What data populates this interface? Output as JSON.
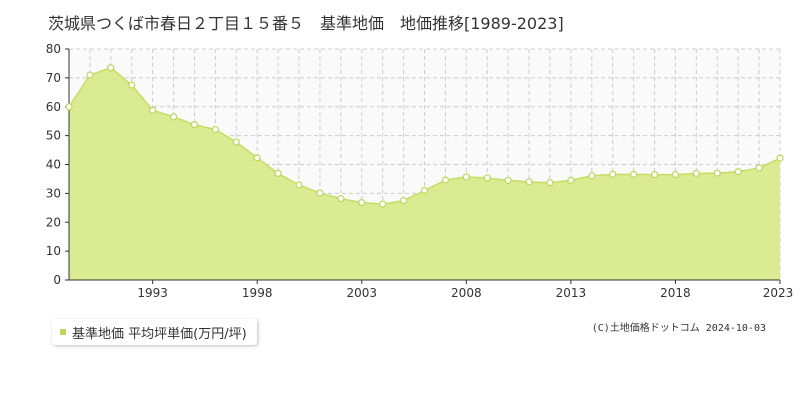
{
  "header": {
    "title": "茨城県つくば市春日２丁目１５番５　基準地価　地価推移[1989-2023]"
  },
  "legend": {
    "label": "基準地価 平均坪単価(万円/坪)"
  },
  "footer": {
    "copyright": "(C)土地価格ドットコム 2024-10-03"
  },
  "colors": {
    "fill": "#dbeb91",
    "line": "#c3df62",
    "marker_stroke": "#b9d85a",
    "marker_fill": "#ffffff",
    "grid": "#cccccc",
    "legend_marker": "#bcd85c",
    "plot_bg": "#fafafa"
  },
  "chart_data": {
    "type": "area",
    "title": "茨城県つくば市春日２丁目１５番５　基準地価　地価推移[1989-2023]",
    "xlabel": "",
    "ylabel": "",
    "xlim": [
      1989,
      2023
    ],
    "ylim": [
      0,
      80
    ],
    "y_ticks": [
      0,
      10,
      20,
      30,
      40,
      50,
      60,
      70,
      80
    ],
    "x_tick_labels": [
      1993,
      1998,
      2003,
      2008,
      2013,
      2018,
      2023
    ],
    "grid": true,
    "legend_position": "bottom-left",
    "series": [
      {
        "name": "基準地価 平均坪単価(万円/坪)",
        "x": [
          1989,
          1990,
          1991,
          1992,
          1993,
          1994,
          1995,
          1996,
          1997,
          1998,
          1999,
          2000,
          2001,
          2002,
          2003,
          2004,
          2005,
          2006,
          2007,
          2008,
          2009,
          2010,
          2011,
          2012,
          2013,
          2014,
          2015,
          2016,
          2017,
          2018,
          2019,
          2020,
          2021,
          2022,
          2023
        ],
        "values": [
          60.0,
          71.0,
          73.5,
          67.5,
          58.8,
          56.5,
          53.8,
          52.1,
          47.8,
          42.3,
          36.9,
          32.9,
          30.1,
          28.2,
          26.8,
          26.3,
          27.5,
          31.0,
          34.6,
          35.7,
          35.3,
          34.5,
          34.0,
          33.7,
          34.5,
          36.1,
          36.6,
          36.6,
          36.5,
          36.5,
          36.9,
          37.0,
          37.5,
          38.8,
          42.2
        ]
      }
    ]
  }
}
